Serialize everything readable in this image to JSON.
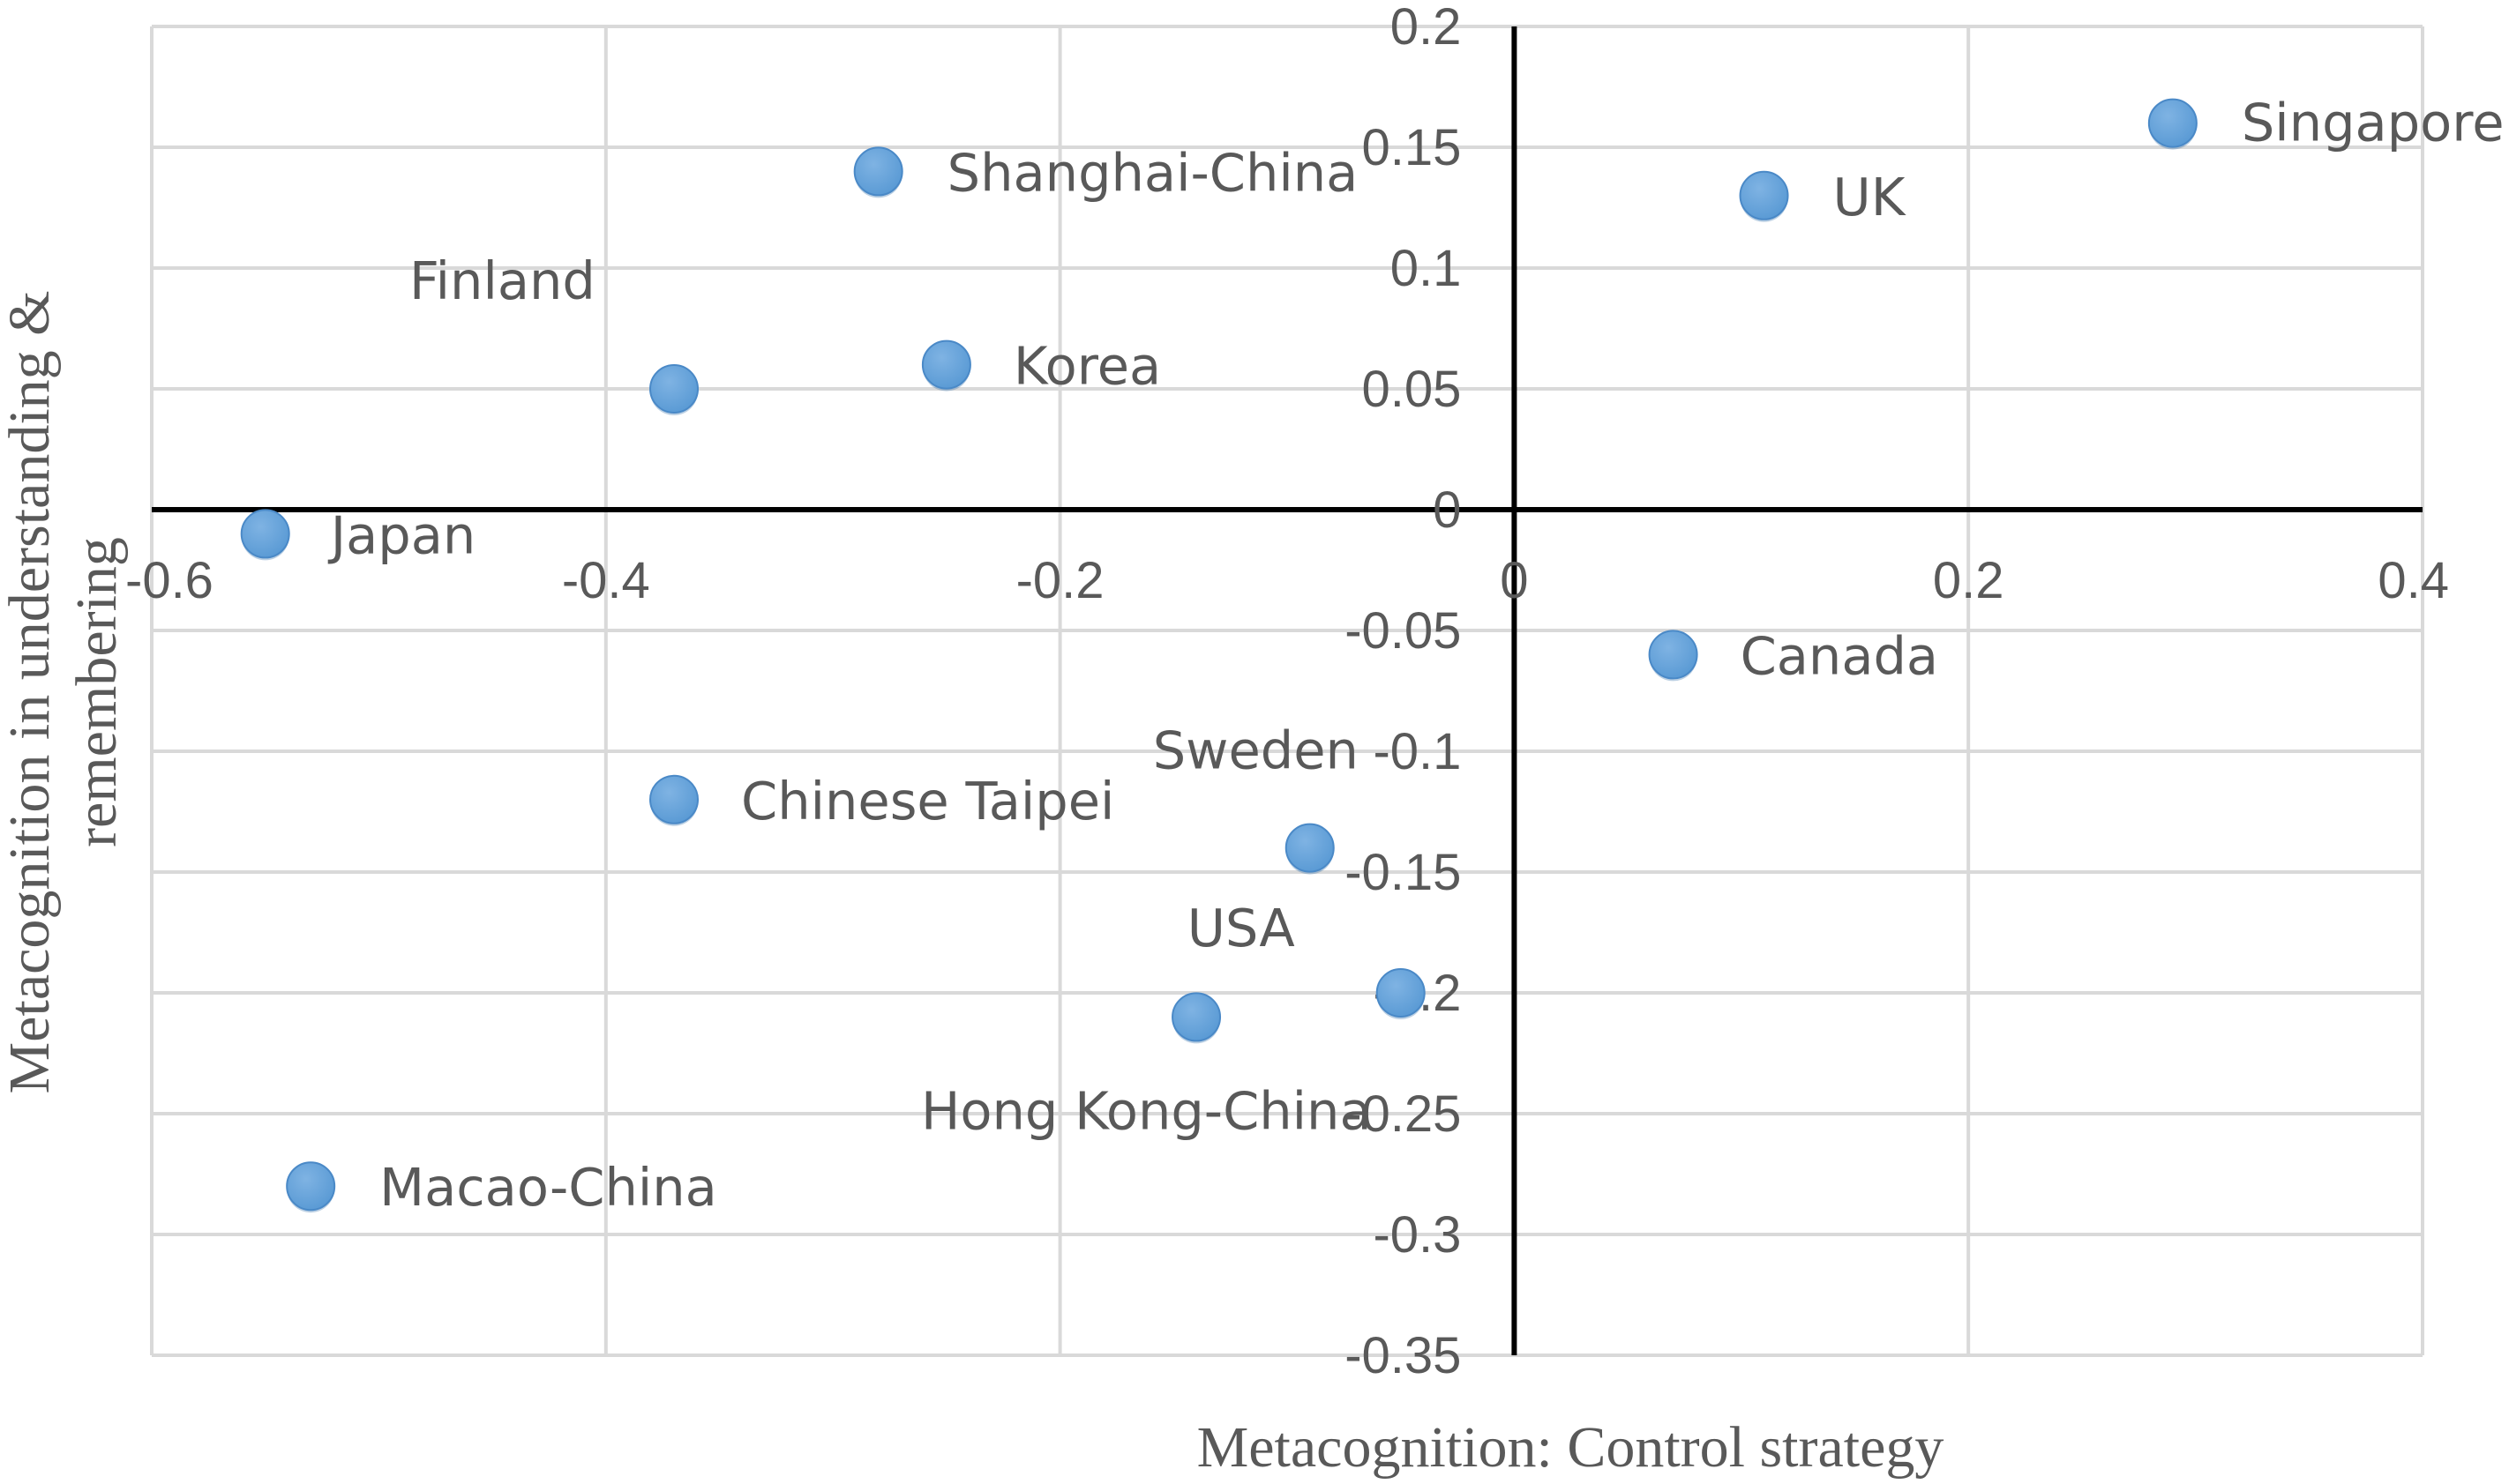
{
  "chart_data": {
    "type": "scatter",
    "xlabel": "Metacognition: Control strategy",
    "ylabel_lines": [
      "Metacognition in understanding &",
      "remembering"
    ],
    "xlim": [
      -0.6,
      0.4
    ],
    "ylim": [
      -0.35,
      0.2
    ],
    "x_ticks": [
      "-0.6",
      "-0.4",
      "-0.2",
      "0",
      "0.2",
      "0.4"
    ],
    "y_ticks": [
      "0.2",
      "0.15",
      "0.1",
      "0.05",
      "0",
      "-0.05",
      "-0.1",
      "-0.15",
      "-0.2",
      "-0.25",
      "-0.3",
      "-0.35"
    ],
    "grid": true,
    "marker_color": "#5b9bd5",
    "points": [
      {
        "label": "Singapore",
        "x": 0.29,
        "y": 0.16
      },
      {
        "label": "UK",
        "x": 0.11,
        "y": 0.13
      },
      {
        "label": "Shanghai-China",
        "x": -0.28,
        "y": 0.14
      },
      {
        "label": "Finland",
        "x": -0.37,
        "y": 0.05
      },
      {
        "label": "Korea",
        "x": -0.25,
        "y": 0.06
      },
      {
        "label": "Japan",
        "x": -0.55,
        "y": -0.01
      },
      {
        "label": "Canada",
        "x": 0.07,
        "y": -0.06
      },
      {
        "label": "Chinese Taipei",
        "x": -0.37,
        "y": -0.12
      },
      {
        "label": "Sweden",
        "x": -0.09,
        "y": -0.14
      },
      {
        "label": "USA",
        "x": -0.05,
        "y": -0.2
      },
      {
        "label": "Hong Kong-China",
        "x": -0.14,
        "y": -0.21
      },
      {
        "label": "Macao-China",
        "x": -0.53,
        "y": -0.28
      }
    ]
  }
}
